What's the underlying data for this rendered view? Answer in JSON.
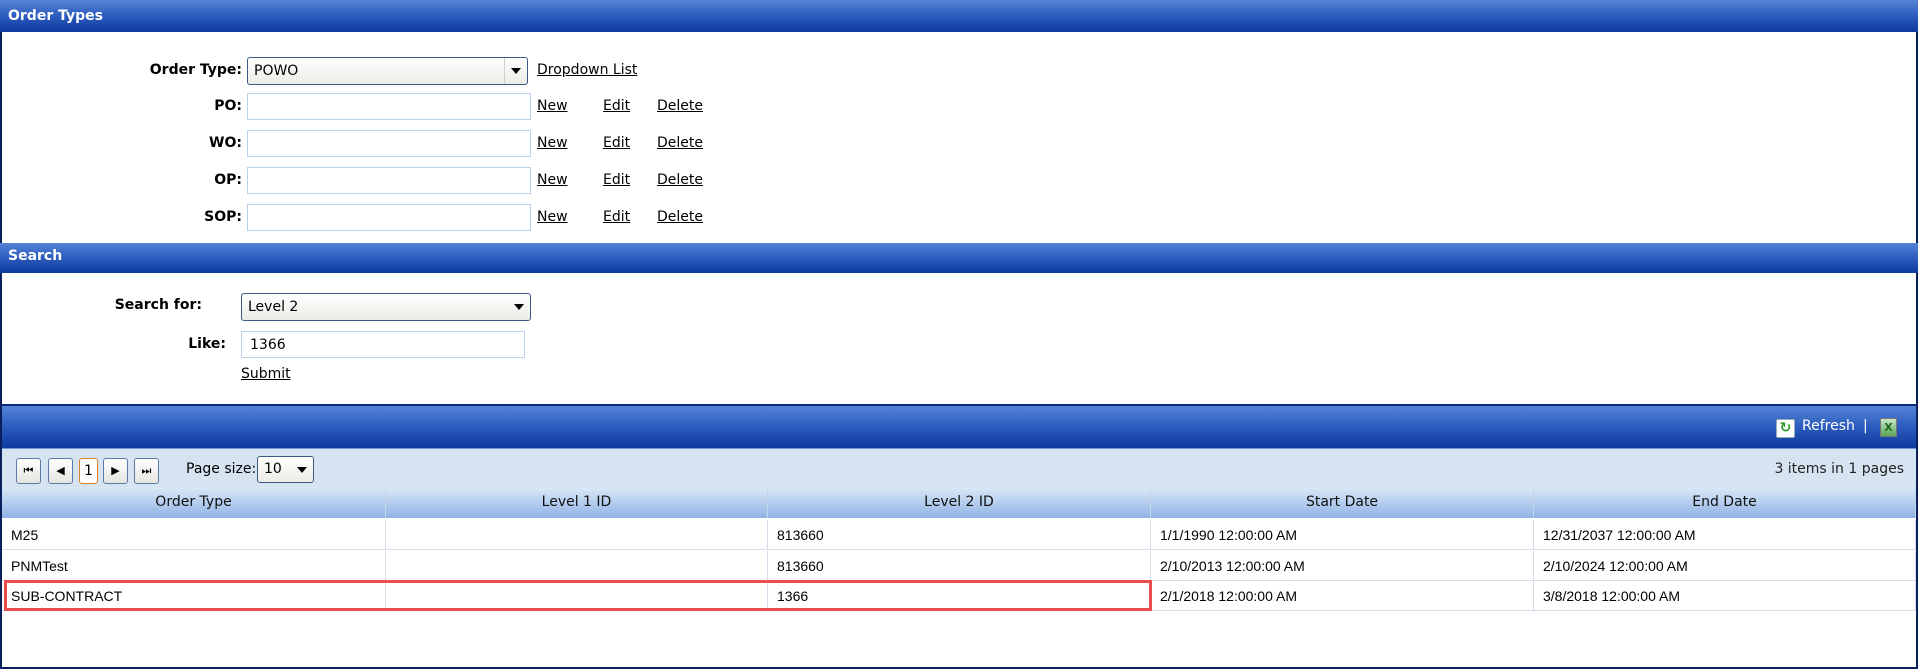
{
  "order_types": {
    "title": "Order Types",
    "order_type_label": "Order Type:",
    "order_type_value": "POWO",
    "dropdown_list_link": "Dropdown List",
    "rows": [
      {
        "label": "PO:",
        "value": ""
      },
      {
        "label": "WO:",
        "value": ""
      },
      {
        "label": "OP:",
        "value": ""
      },
      {
        "label": "SOP:",
        "value": ""
      }
    ],
    "new_label": "New",
    "edit_label": "Edit",
    "delete_label": "Delete"
  },
  "search": {
    "title": "Search",
    "search_for_label": "Search for:",
    "search_for_value": "Level 2",
    "like_label": "Like:",
    "like_value": "1366",
    "submit_label": "Submit"
  },
  "grid": {
    "refresh_label": "Refresh",
    "separator": "|",
    "icons": {
      "refresh": "refresh-icon",
      "export": "excel-export-icon"
    },
    "pager": {
      "current_page": "1",
      "page_size_label": "Page size:",
      "page_size_value": "10",
      "summary": "3 items in 1 pages"
    },
    "columns": [
      "Order Type",
      "Level 1 ID",
      "Level 2 ID",
      "Start Date",
      "End Date"
    ],
    "rows": [
      [
        "M25",
        "",
        "813660",
        "1/1/1990 12:00:00 AM",
        "12/31/2037 12:00:00 AM"
      ],
      [
        "PNMTest",
        "",
        "813660",
        "2/10/2013 12:00:00 AM",
        "2/10/2024 12:00:00 AM"
      ],
      [
        "SUB-CONTRACT",
        "",
        "1366",
        "2/1/2018 12:00:00 AM",
        "3/8/2018 12:00:00 AM"
      ]
    ],
    "highlighted_row": 2,
    "highlight_color": "#e84c4c"
  }
}
